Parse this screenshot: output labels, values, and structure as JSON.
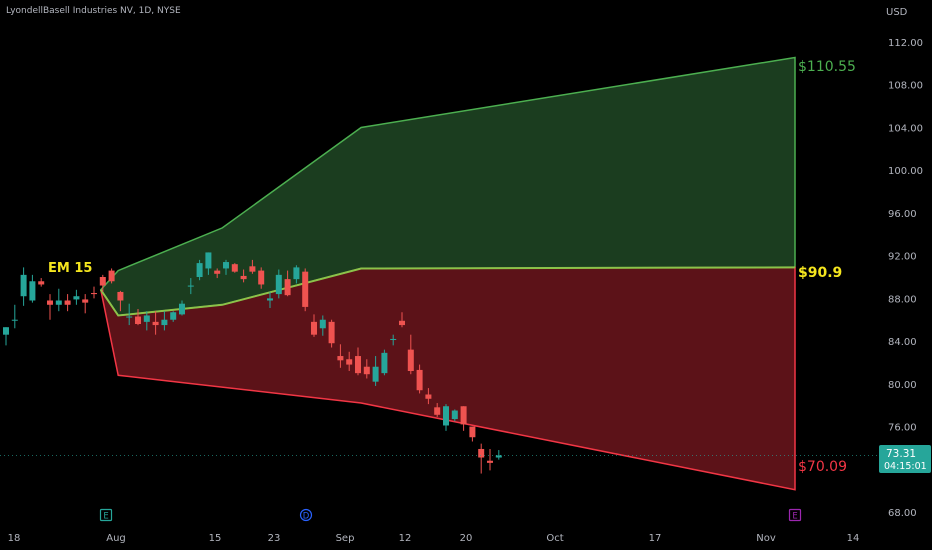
{
  "header": {
    "title": "LyondellBasell Industries NV, 1D, NYSE",
    "currency": "USD"
  },
  "price_label": {
    "price": "73.31",
    "countdown": "04:15:01",
    "value": 73.31
  },
  "colors": {
    "up": "#26a69a",
    "down": "#ef5350",
    "green_zone_fill": "#1b3d1f",
    "green_zone_stroke": "#4caf50",
    "red_zone_fill": "#5c1218",
    "red_zone_stroke": "#f23645",
    "axis_text": "#b2b5be",
    "em_label": "#f5e61e"
  },
  "chart_data": {
    "type": "candlestick",
    "y_axis": {
      "ticks": [
        "112.00",
        "108.00",
        "104.00",
        "100.00",
        "96.00",
        "92.00",
        "88.00",
        "84.00",
        "80.00",
        "76.00",
        "68.00"
      ],
      "range": [
        66.5,
        116
      ]
    },
    "x_axis": {
      "ticks": [
        "18",
        "Aug",
        "15",
        "23",
        "Sep",
        "12",
        "20",
        "Oct",
        "17",
        "Nov",
        "14"
      ]
    },
    "candles": [
      {
        "d": "Jul 17",
        "o": 84.6,
        "h": 85.3,
        "l": 83.6,
        "c": 85.3
      },
      {
        "d": "Jul 18",
        "o": 86.0,
        "h": 87.4,
        "l": 85.2,
        "c": 86.0
      },
      {
        "d": "Jul 19",
        "o": 88.2,
        "h": 90.9,
        "l": 87.3,
        "c": 90.2
      },
      {
        "d": "Jul 22",
        "o": 87.8,
        "h": 90.2,
        "l": 87.6,
        "c": 89.6
      },
      {
        "d": "Jul 23",
        "o": 89.6,
        "h": 89.9,
        "l": 89.1,
        "c": 89.3
      },
      {
        "d": "Jul 24",
        "o": 87.8,
        "h": 88.4,
        "l": 86.0,
        "c": 87.4
      },
      {
        "d": "Jul 25",
        "o": 87.4,
        "h": 88.9,
        "l": 86.8,
        "c": 87.8
      },
      {
        "d": "Jul 26",
        "o": 87.8,
        "h": 88.4,
        "l": 86.8,
        "c": 87.4
      },
      {
        "d": "Jul 29",
        "o": 87.9,
        "h": 88.8,
        "l": 87.4,
        "c": 88.2
      },
      {
        "d": "Jul 30",
        "o": 87.9,
        "h": 88.4,
        "l": 86.6,
        "c": 87.6
      },
      {
        "d": "Jul 31",
        "o": 88.5,
        "h": 89.1,
        "l": 88.0,
        "c": 88.4
      },
      {
        "d": "Aug 1",
        "o": 90.0,
        "h": 90.2,
        "l": 88.6,
        "c": 89.2
      },
      {
        "d": "Aug 2",
        "o": 90.6,
        "h": 90.8,
        "l": 89.4,
        "c": 89.6
      },
      {
        "d": "Aug 5",
        "o": 88.6,
        "h": 88.7,
        "l": 86.8,
        "c": 87.8
      },
      {
        "d": "Aug 6",
        "o": 86.3,
        "h": 87.5,
        "l": 85.5,
        "c": 86.3
      },
      {
        "d": "Aug 7",
        "o": 86.3,
        "h": 87.0,
        "l": 85.5,
        "c": 85.6
      },
      {
        "d": "Aug 8",
        "o": 85.8,
        "h": 86.8,
        "l": 85.0,
        "c": 86.4
      },
      {
        "d": "Aug 9",
        "o": 85.8,
        "h": 86.8,
        "l": 84.6,
        "c": 85.5
      },
      {
        "d": "Aug 12",
        "o": 85.5,
        "h": 86.8,
        "l": 85.0,
        "c": 86.0
      },
      {
        "d": "Aug 13",
        "o": 86.0,
        "h": 86.8,
        "l": 85.8,
        "c": 86.7
      },
      {
        "d": "Aug 14",
        "o": 86.5,
        "h": 87.8,
        "l": 86.4,
        "c": 87.5
      },
      {
        "d": "Aug 15",
        "o": 89.1,
        "h": 89.9,
        "l": 88.4,
        "c": 89.2
      },
      {
        "d": "Aug 16",
        "o": 90.0,
        "h": 91.6,
        "l": 89.7,
        "c": 91.3
      },
      {
        "d": "Aug 19",
        "o": 90.8,
        "h": 92.3,
        "l": 90.2,
        "c": 92.3
      },
      {
        "d": "Aug 20",
        "o": 90.6,
        "h": 90.8,
        "l": 89.9,
        "c": 90.3
      },
      {
        "d": "Aug 21",
        "o": 90.8,
        "h": 91.6,
        "l": 90.2,
        "c": 91.4
      },
      {
        "d": "Aug 22",
        "o": 91.2,
        "h": 91.3,
        "l": 90.4,
        "c": 90.5
      },
      {
        "d": "Aug 23",
        "o": 90.1,
        "h": 90.7,
        "l": 89.5,
        "c": 89.8
      },
      {
        "d": "Aug 26",
        "o": 91.0,
        "h": 91.6,
        "l": 90.3,
        "c": 90.5
      },
      {
        "d": "Aug 27",
        "o": 90.6,
        "h": 90.9,
        "l": 88.9,
        "c": 89.3
      },
      {
        "d": "Aug 28",
        "o": 87.8,
        "h": 88.6,
        "l": 87.1,
        "c": 88.0
      },
      {
        "d": "Aug 29",
        "o": 88.4,
        "h": 90.7,
        "l": 88.0,
        "c": 90.2
      },
      {
        "d": "Aug 30",
        "o": 89.8,
        "h": 90.6,
        "l": 88.2,
        "c": 88.3
      },
      {
        "d": "Sep 3",
        "o": 89.8,
        "h": 91.1,
        "l": 89.4,
        "c": 90.9
      },
      {
        "d": "Sep 4",
        "o": 90.5,
        "h": 90.8,
        "l": 86.8,
        "c": 87.2
      },
      {
        "d": "Sep 5",
        "o": 85.8,
        "h": 86.5,
        "l": 84.4,
        "c": 84.6
      },
      {
        "d": "Sep 6",
        "o": 85.2,
        "h": 86.4,
        "l": 84.5,
        "c": 86.0
      },
      {
        "d": "Sep 9",
        "o": 85.8,
        "h": 86.0,
        "l": 83.4,
        "c": 83.8
      },
      {
        "d": "Sep 10",
        "o": 82.6,
        "h": 83.7,
        "l": 81.5,
        "c": 82.2
      },
      {
        "d": "Sep 11",
        "o": 82.3,
        "h": 83.0,
        "l": 81.2,
        "c": 81.8
      },
      {
        "d": "Sep 12",
        "o": 82.6,
        "h": 83.4,
        "l": 80.8,
        "c": 81.0
      },
      {
        "d": "Sep 13",
        "o": 81.6,
        "h": 82.3,
        "l": 80.5,
        "c": 80.9
      },
      {
        "d": "Sep 16",
        "o": 80.2,
        "h": 82.6,
        "l": 79.8,
        "c": 81.6
      },
      {
        "d": "Sep 17",
        "o": 81.0,
        "h": 83.2,
        "l": 80.8,
        "c": 82.9
      },
      {
        "d": "Sep 18",
        "o": 84.1,
        "h": 84.6,
        "l": 83.6,
        "c": 84.2
      },
      {
        "d": "Sep 19",
        "o": 85.9,
        "h": 86.7,
        "l": 85.3,
        "c": 85.5
      },
      {
        "d": "Sep 20",
        "o": 83.2,
        "h": 84.6,
        "l": 80.9,
        "c": 81.2
      },
      {
        "d": "Sep 23",
        "o": 81.3,
        "h": 81.8,
        "l": 79.1,
        "c": 79.4
      },
      {
        "d": "Sep 24",
        "o": 79.0,
        "h": 79.6,
        "l": 78.1,
        "c": 78.6
      },
      {
        "d": "Sep 25",
        "o": 77.8,
        "h": 78.2,
        "l": 76.9,
        "c": 77.1
      },
      {
        "d": "Sep 26",
        "o": 76.1,
        "h": 78.1,
        "l": 75.6,
        "c": 77.9
      },
      {
        "d": "Sep 27",
        "o": 76.7,
        "h": 77.6,
        "l": 76.5,
        "c": 77.5
      },
      {
        "d": "Sep 30",
        "o": 77.9,
        "h": 77.9,
        "l": 75.6,
        "c": 76.2
      },
      {
        "d": "Oct 1",
        "o": 76.0,
        "h": 76.0,
        "l": 74.6,
        "c": 75.0
      },
      {
        "d": "Oct 2",
        "o": 73.9,
        "h": 74.4,
        "l": 71.6,
        "c": 73.1
      },
      {
        "d": "Oct 3",
        "o": 72.8,
        "h": 73.9,
        "l": 71.9,
        "c": 72.6
      },
      {
        "d": "Oct 4",
        "o": 73.1,
        "h": 73.8,
        "l": 72.9,
        "c": 73.3
      }
    ],
    "expected_move": {
      "upper_zone": [
        [
          0,
          88.8
        ],
        [
          1,
          90.6
        ],
        [
          7,
          94.6
        ],
        [
          15,
          104.0
        ],
        [
          40,
          110.55
        ]
      ],
      "mid_line": [
        [
          0,
          88.8
        ],
        [
          1,
          86.4
        ],
        [
          7,
          87.4
        ],
        [
          15,
          90.8
        ],
        [
          40,
          90.9
        ]
      ],
      "lower_zone": [
        [
          0,
          88.8
        ],
        [
          1,
          80.8
        ],
        [
          15,
          78.2
        ],
        [
          40,
          70.09
        ]
      ],
      "levels": {
        "upper": "$110.55",
        "mid": "$90.9",
        "lower": "$70.09"
      },
      "em_label": "EM 15"
    },
    "event_markers": [
      {
        "label": "E",
        "at": "Aug 1",
        "color": "#26a69a"
      },
      {
        "label": "D",
        "at": "Sep 3",
        "color": "#2962ff"
      },
      {
        "label": "E",
        "at": "Nov 1",
        "color": "#9c27b0"
      }
    ]
  }
}
